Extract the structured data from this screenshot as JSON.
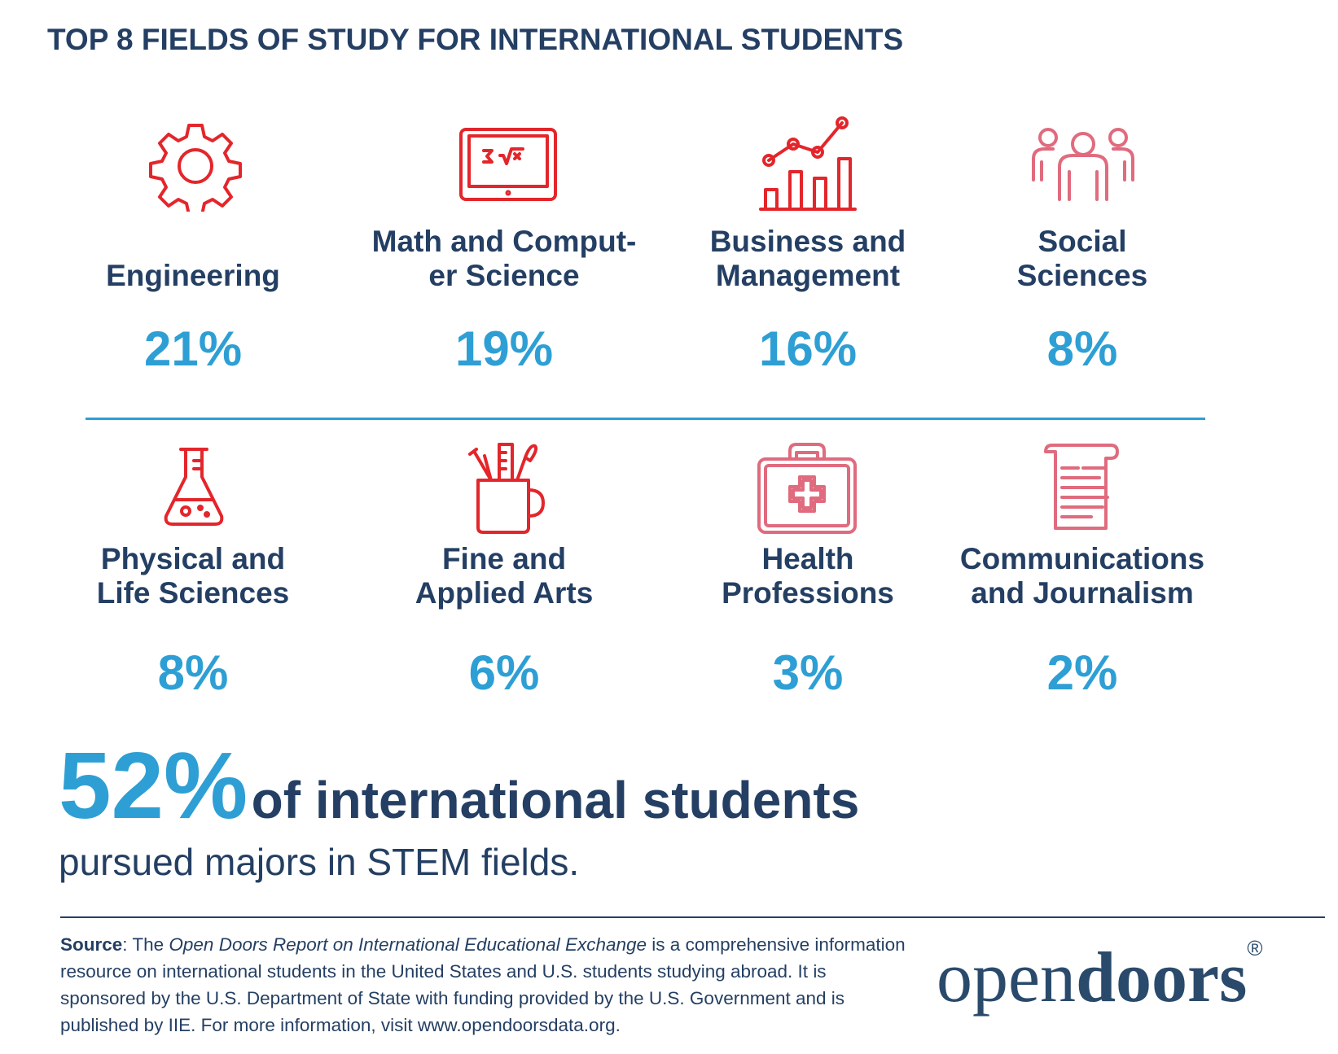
{
  "header": {
    "title": "TOP 8 FIELDS OF STUDY FOR INTERNATIONAL STUDENTS"
  },
  "fields": [
    {
      "label": [
        "Engineering"
      ],
      "share": "21%"
    },
    {
      "label": [
        "Math and Comput-",
        "er Science"
      ],
      "share": "19%"
    },
    {
      "label": [
        "Business and",
        "Management"
      ],
      "share": "16%"
    },
    {
      "label": [
        "Social",
        "Sciences"
      ],
      "share": "8%"
    },
    {
      "label": [
        "Physical and",
        "Life Sciences"
      ],
      "share": "8%"
    },
    {
      "label": [
        "Fine and",
        "Applied Arts"
      ],
      "share": "6%"
    },
    {
      "label": [
        "Health",
        "Professions"
      ],
      "share": "3%"
    },
    {
      "label": [
        "Communications",
        "and Journalism"
      ],
      "share": "2%"
    }
  ],
  "highlight": {
    "figure": "52%",
    "headline": "of international students",
    "subline": "pursued majors in STEM fields."
  },
  "source": {
    "lead": "Source",
    "text_1": ": The ",
    "report": "Open Doors Report on International Educational Exchange",
    "text_2": " is a comprehensive information resource on international students in the United States and U.S. students studying abroad. It is sponsored by the U.S. Department of State with funding provided by the U.S. Government and is published by IIE. For more information, visit www.opendoorsdata.org."
  },
  "logo": {
    "part_1": "open",
    "part_2": "doors",
    "mark": "®"
  }
}
